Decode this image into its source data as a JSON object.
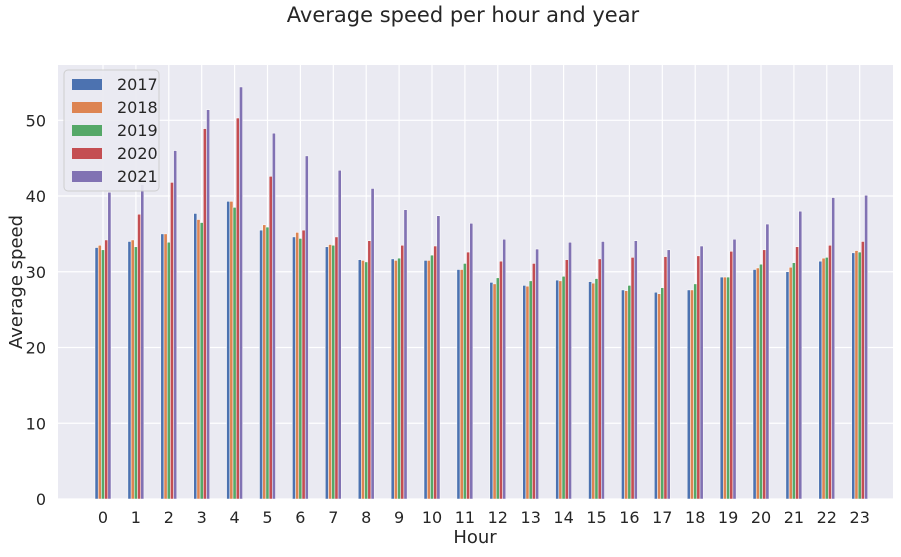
{
  "chart_data": {
    "type": "bar",
    "title": "Average speed per hour and year",
    "xlabel": "Hour",
    "ylabel": "Average speed",
    "categories": [
      "0",
      "1",
      "2",
      "3",
      "4",
      "5",
      "6",
      "7",
      "8",
      "9",
      "10",
      "11",
      "12",
      "13",
      "14",
      "15",
      "16",
      "17",
      "18",
      "19",
      "20",
      "21",
      "22",
      "23"
    ],
    "ylim": [
      0,
      57.3
    ],
    "yticks": [
      "0",
      "10",
      "20",
      "30",
      "40",
      "50"
    ],
    "grid": true,
    "legend_position": "top-left",
    "series": [
      {
        "name": "2017",
        "color": "#4c72b0",
        "values": [
          33.2,
          34.0,
          35.0,
          37.7,
          39.3,
          35.5,
          34.6,
          33.3,
          31.6,
          31.7,
          31.5,
          30.3,
          28.6,
          28.2,
          28.9,
          28.7,
          27.6,
          27.3,
          27.6,
          29.3,
          30.3,
          30.0,
          31.4,
          32.5
        ]
      },
      {
        "name": "2018",
        "color": "#dd8452",
        "values": [
          33.5,
          34.2,
          35.0,
          36.9,
          39.3,
          36.2,
          35.2,
          33.6,
          31.5,
          31.5,
          31.5,
          30.3,
          28.4,
          28.1,
          28.8,
          28.5,
          27.5,
          27.1,
          27.6,
          29.3,
          30.5,
          30.6,
          31.8,
          32.8
        ]
      },
      {
        "name": "2019",
        "color": "#55a868",
        "values": [
          32.9,
          33.3,
          33.9,
          36.5,
          38.5,
          35.9,
          34.4,
          33.5,
          31.3,
          31.8,
          32.2,
          31.1,
          29.2,
          28.8,
          29.4,
          29.1,
          28.2,
          27.9,
          28.4,
          29.3,
          31.0,
          31.2,
          31.9,
          32.6
        ]
      },
      {
        "name": "2020",
        "color": "#c44e52",
        "values": [
          34.2,
          37.6,
          41.8,
          48.9,
          50.3,
          42.6,
          35.5,
          34.6,
          34.1,
          33.5,
          33.4,
          32.6,
          31.4,
          31.1,
          31.6,
          31.7,
          31.9,
          32.0,
          32.1,
          32.7,
          32.9,
          33.3,
          33.5,
          34.0
        ]
      },
      {
        "name": "2021",
        "color": "#8172b3",
        "values": [
          40.5,
          41.5,
          46.0,
          51.4,
          54.4,
          48.3,
          45.3,
          43.4,
          41.0,
          38.2,
          37.4,
          36.4,
          34.3,
          33.0,
          33.9,
          34.0,
          34.1,
          32.9,
          33.4,
          34.3,
          36.3,
          38.0,
          39.8,
          40.1
        ]
      }
    ]
  }
}
